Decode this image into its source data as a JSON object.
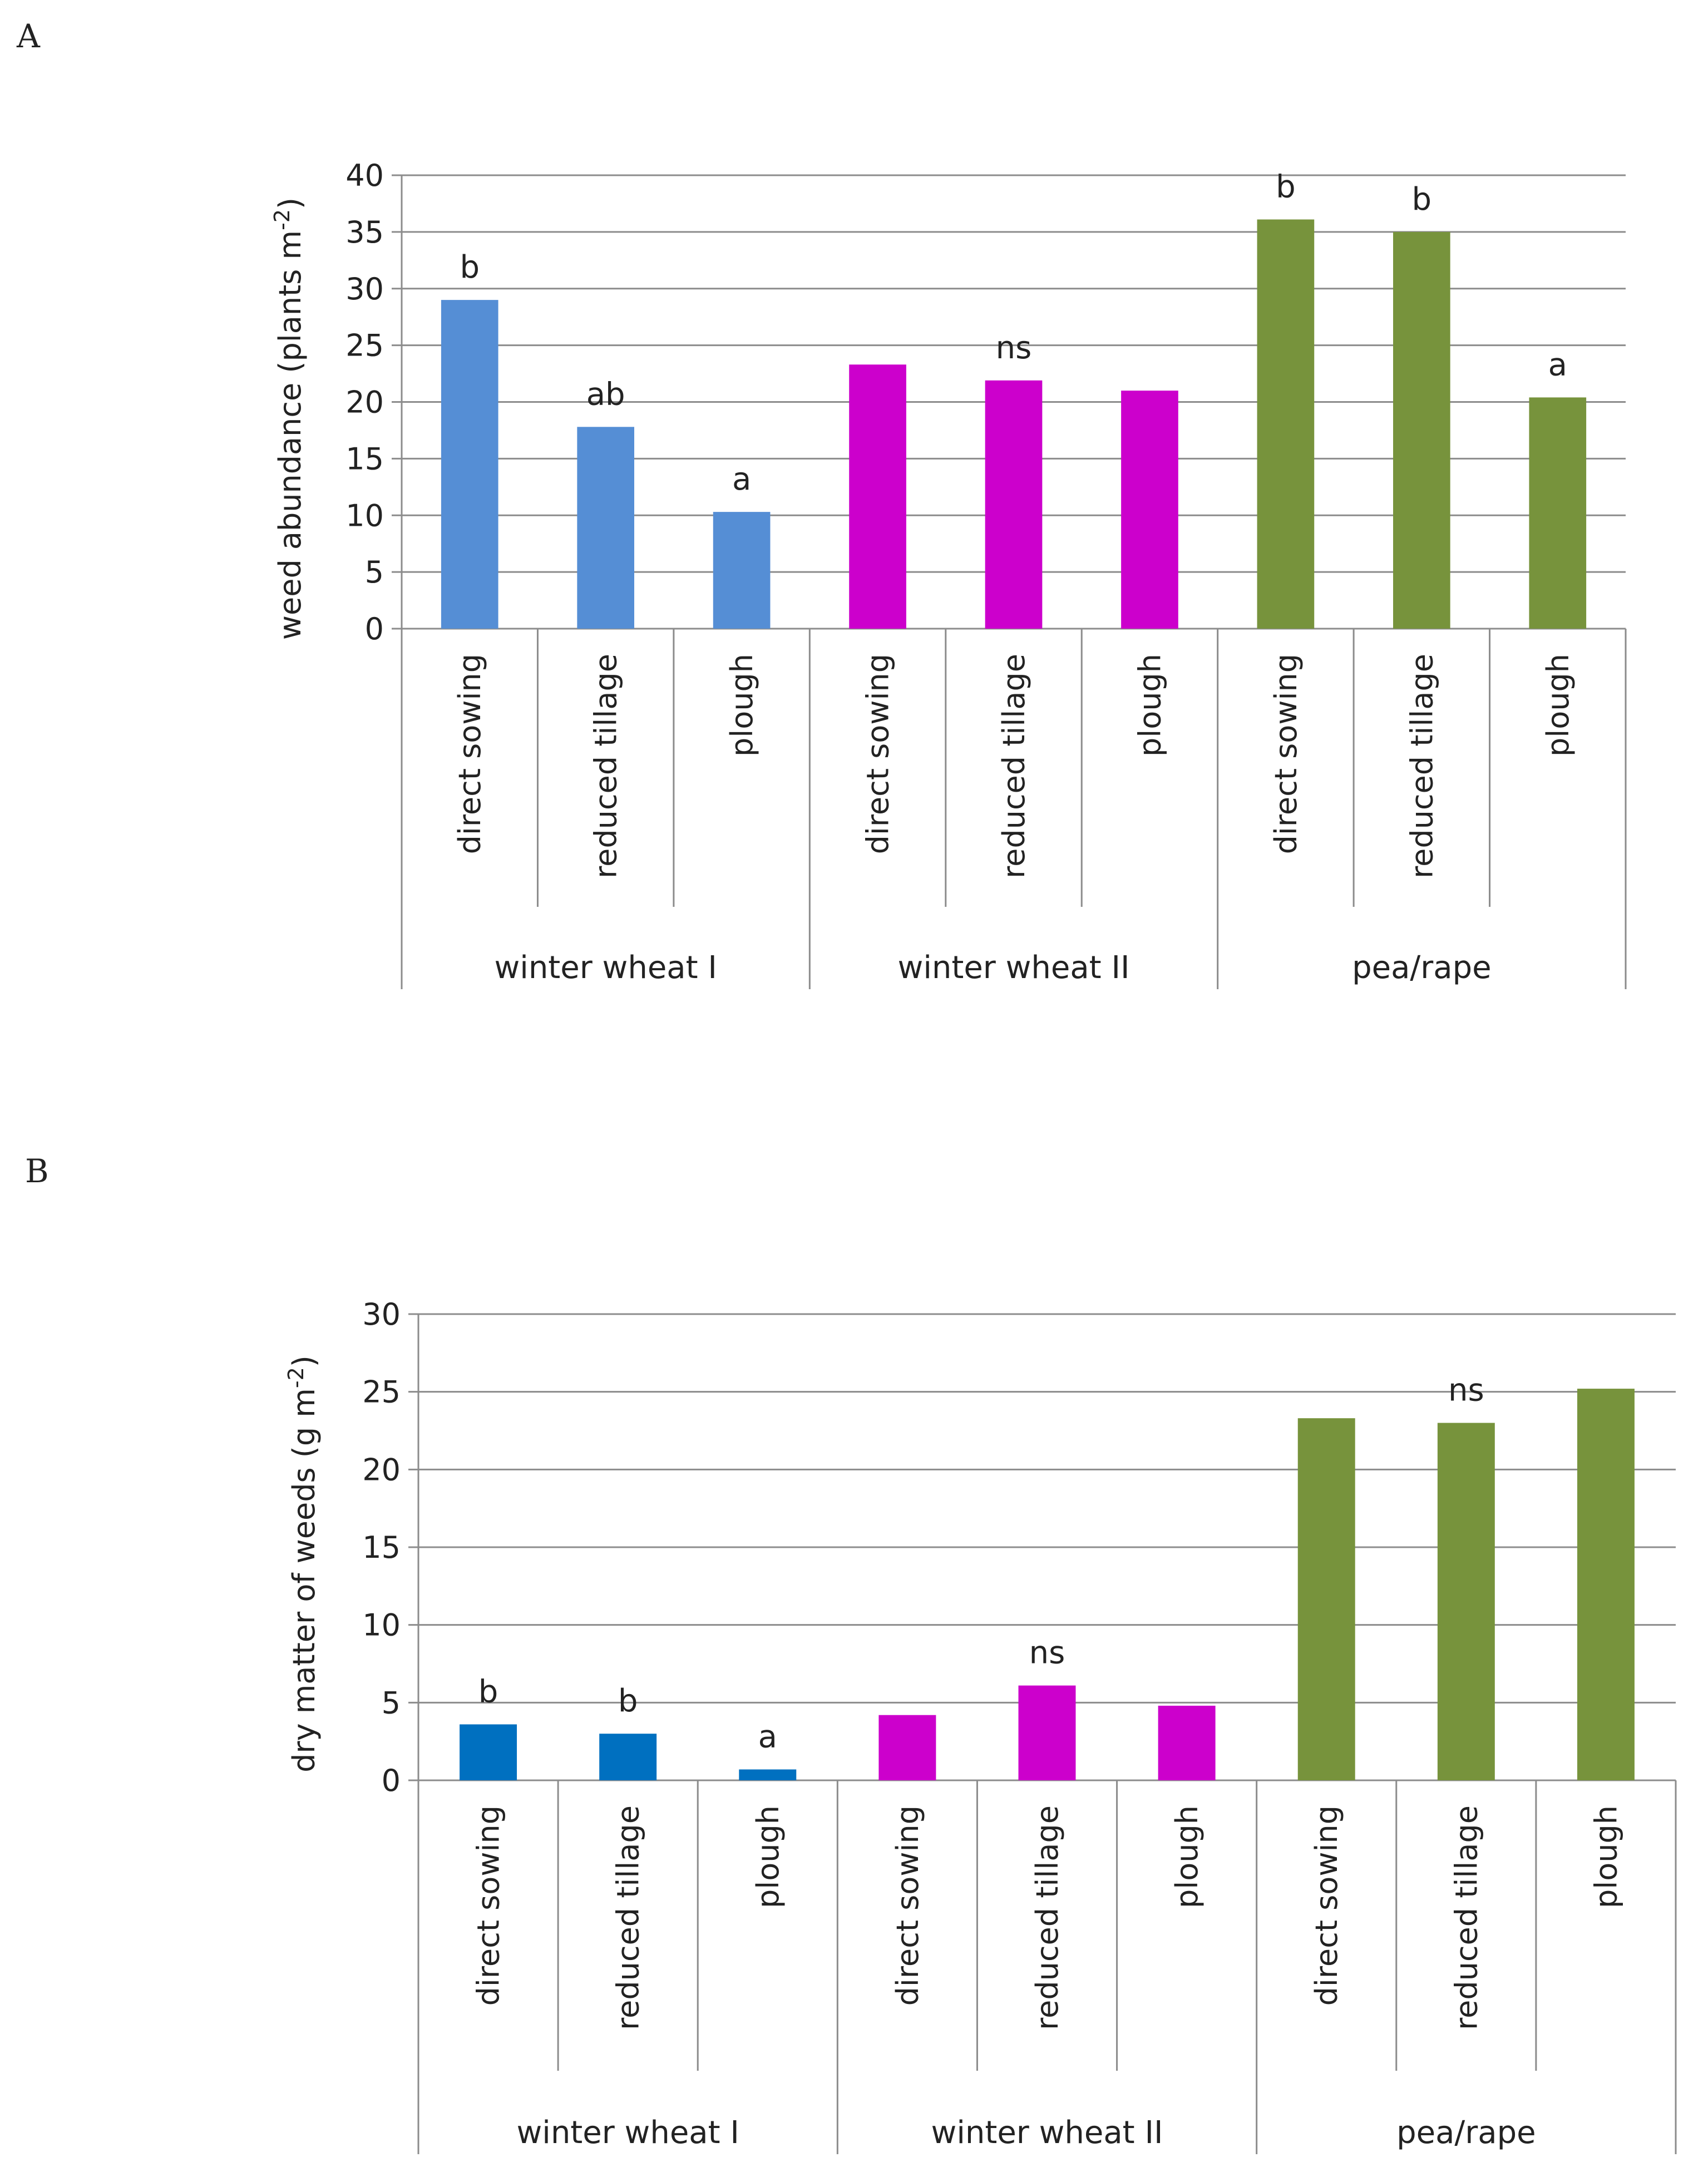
{
  "chart_data": [
    {
      "panel": "A",
      "type": "bar",
      "ylabel_main": "weed  abundance (plants m",
      "ylabel_sup": "-2",
      "ylabel_end": ")",
      "ylim": [
        0,
        40
      ],
      "yticks": [
        "0",
        "5",
        "10",
        "15",
        "20",
        "25",
        "30",
        "35",
        "40"
      ],
      "grid": true,
      "categories": [
        "direct sowing",
        "reduced tillage",
        "plough",
        "direct sowing",
        "reduced tillage",
        "plough",
        "direct sowing",
        "reduced tillage",
        "plough"
      ],
      "groups": [
        "winter wheat I",
        "winter wheat II",
        "pea/rape"
      ],
      "group_colors": [
        "#558ed5",
        "#cc00cc",
        "#77933c"
      ],
      "values": [
        29,
        17.8,
        10.3,
        23.3,
        21.9,
        21,
        36.1,
        35,
        20.4
      ],
      "bar_labels": [
        "b",
        "ab",
        "a",
        "",
        "ns",
        "",
        "b",
        "b",
        "a"
      ]
    },
    {
      "panel": "B",
      "type": "bar",
      "ylabel_main": "dry matter of weeds  (g m",
      "ylabel_sup": "-2",
      "ylabel_end": ")",
      "ylim": [
        0,
        30
      ],
      "yticks": [
        "0",
        "5",
        "10",
        "15",
        "20",
        "25",
        "30"
      ],
      "grid": true,
      "categories": [
        "direct sowing",
        "reduced tillage",
        "plough",
        "direct sowing",
        "reduced tillage",
        "plough",
        "direct sowing",
        "reduced tillage",
        "plough"
      ],
      "groups": [
        "winter wheat I",
        "winter wheat II",
        "pea/rape"
      ],
      "group_colors": [
        "#0070c0",
        "#cc00cc",
        "#77933c"
      ],
      "values": [
        3.6,
        3,
        0.7,
        4.2,
        6.1,
        4.8,
        23.3,
        23,
        25.2
      ],
      "bar_labels": [
        "b",
        "b",
        "a",
        "",
        "ns",
        "",
        "",
        "ns",
        ""
      ]
    }
  ]
}
